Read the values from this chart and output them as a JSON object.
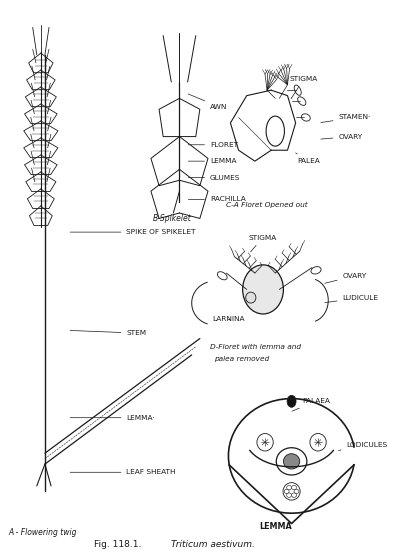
{
  "bg": "#ffffff",
  "lc": "#1a1a1a",
  "tc": "#1a1a1a",
  "figsize": [
    4.16,
    5.57
  ],
  "dpi": 100,
  "title_normal": "Fig. 118.1. ",
  "title_italic": "Triticum aestivum.",
  "label_A": "A - Flowering twig",
  "label_B": "B-Spikelet",
  "label_C": "C-A Floret Opened out",
  "label_D": "D-Floret with lemma and\npalea removed",
  "ann_A": [
    {
      "text": "SPIKE OF SPIKELET",
      "xt": 0.3,
      "yt": 0.415,
      "xa": 0.155,
      "ya": 0.415
    },
    {
      "text": "STEM",
      "xt": 0.3,
      "yt": 0.6,
      "xa": 0.155,
      "ya": 0.595
    },
    {
      "text": "LEMMA·",
      "xt": 0.3,
      "yt": 0.755,
      "xa": 0.155,
      "ya": 0.755
    },
    {
      "text": "LEAF SHEATH",
      "xt": 0.3,
      "yt": 0.855,
      "xa": 0.155,
      "ya": 0.855
    }
  ],
  "ann_B": [
    {
      "text": "AWN",
      "xt": 0.505,
      "yt": 0.185,
      "xa": 0.445,
      "ya": 0.16
    },
    {
      "text": "FLORET",
      "xt": 0.505,
      "yt": 0.255,
      "xa": 0.445,
      "ya": 0.255
    },
    {
      "text": "LEMMA",
      "xt": 0.505,
      "yt": 0.285,
      "xa": 0.445,
      "ya": 0.285
    },
    {
      "text": "GLUMES",
      "xt": 0.505,
      "yt": 0.315,
      "xa": 0.445,
      "ya": 0.315
    },
    {
      "text": "RACHILLA",
      "xt": 0.505,
      "yt": 0.355,
      "xa": 0.445,
      "ya": 0.355
    }
  ],
  "ann_C": [
    {
      "text": "STIGMA",
      "xt": 0.7,
      "yt": 0.135,
      "xa": 0.7,
      "ya": 0.175
    },
    {
      "text": "STAMEN·",
      "xt": 0.82,
      "yt": 0.205,
      "xa": 0.77,
      "ya": 0.215
    },
    {
      "text": "OVARY",
      "xt": 0.82,
      "yt": 0.24,
      "xa": 0.77,
      "ya": 0.245
    },
    {
      "text": "PALEA",
      "xt": 0.72,
      "yt": 0.285,
      "xa": 0.715,
      "ya": 0.27
    }
  ],
  "ann_D": [
    {
      "text": "STIGMA",
      "xt": 0.6,
      "yt": 0.425,
      "xa": 0.6,
      "ya": 0.455
    },
    {
      "text": "OVARY",
      "xt": 0.83,
      "yt": 0.495,
      "xa": 0.78,
      "ya": 0.51
    },
    {
      "text": "LUDICULE",
      "xt": 0.83,
      "yt": 0.535,
      "xa": 0.78,
      "ya": 0.545
    },
    {
      "text": "LARNINA",
      "xt": 0.51,
      "yt": 0.575,
      "xa": 0.555,
      "ya": 0.575
    }
  ],
  "ann_E": [
    {
      "text": "PALAEA",
      "xt": 0.73,
      "yt": 0.725,
      "xa": 0.7,
      "ya": 0.745
    },
    {
      "text": "LODICULES",
      "xt": 0.84,
      "yt": 0.805,
      "xa": 0.82,
      "ya": 0.815
    },
    {
      "text": "LEMMA",
      "xt": 0.665,
      "yt": 0.955,
      "xa": 0.665,
      "ya": 0.955
    }
  ]
}
